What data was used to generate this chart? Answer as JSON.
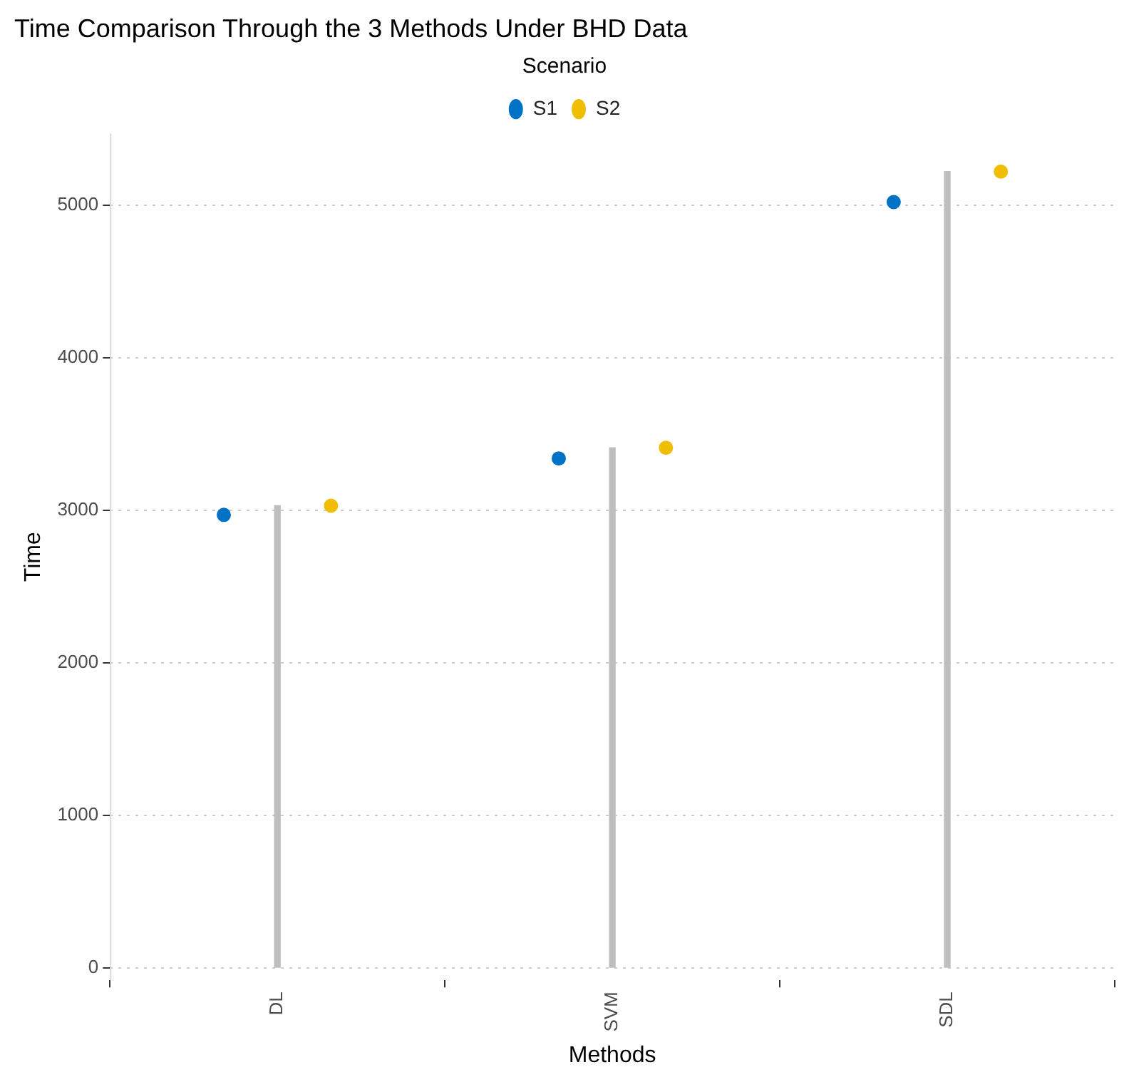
{
  "chart_data": {
    "type": "scatter",
    "title": "Time Comparison Through the 3 Methods Under BHD Data",
    "xlabel": "Methods",
    "ylabel": "Time",
    "legend_title": "Scenario",
    "categories": [
      "DL",
      "SVM",
      "SDL"
    ],
    "series": [
      {
        "type": "bar",
        "color": "#bebebe",
        "values": [
          3030,
          3410,
          5220
        ]
      },
      {
        "name": "S1",
        "color": "#0072c6",
        "values": [
          2970,
          3340,
          5020
        ]
      },
      {
        "name": "S2",
        "color": "#f0be00",
        "values": [
          3030,
          3410,
          5220
        ]
      }
    ],
    "ylim": [
      -80,
      5470
    ],
    "yticks": [
      0,
      1000,
      2000,
      3000,
      4000,
      5000
    ],
    "grid": "y",
    "legend": "top",
    "marker": "circle"
  }
}
